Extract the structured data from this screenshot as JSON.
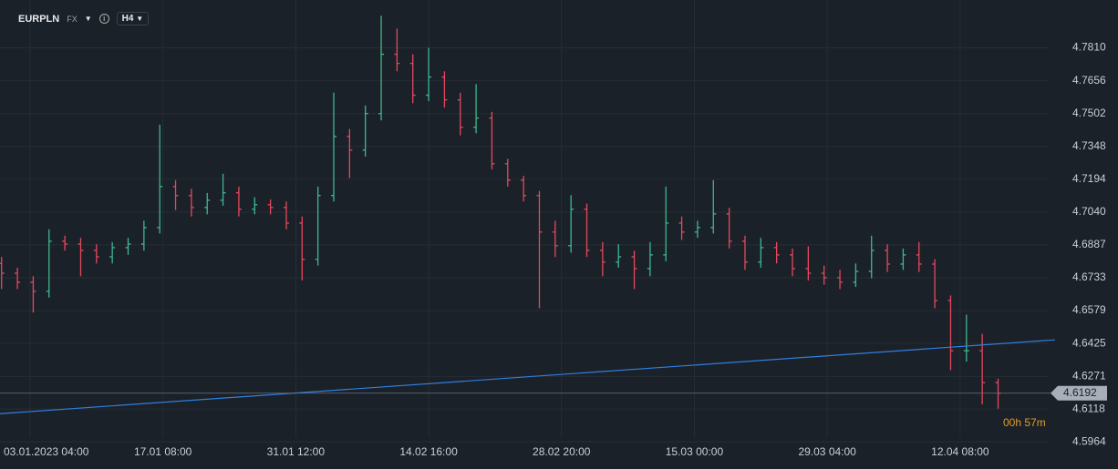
{
  "header": {
    "symbol": "EURPLN",
    "market": "FX",
    "interval": "H4"
  },
  "chart_data": {
    "type": "ohlc",
    "x": [
      -18,
      -8,
      2,
      12,
      22,
      32,
      42,
      52,
      62,
      72,
      82,
      92,
      102,
      112,
      122,
      132,
      142,
      152,
      162,
      172,
      182,
      192,
      202,
      212,
      222,
      232,
      242,
      252,
      262,
      272,
      282,
      292,
      302,
      312,
      322,
      332,
      342,
      352,
      362,
      372,
      382,
      392,
      402,
      412,
      422,
      432,
      442,
      452,
      462,
      472,
      482,
      492,
      502,
      512,
      522,
      532,
      542,
      552,
      562,
      572,
      582,
      592,
      602,
      612
    ],
    "open": [
      4.68,
      4.6754,
      4.6712,
      4.6669,
      4.6904,
      4.6891,
      4.6861,
      4.6831,
      4.6874,
      4.6891,
      4.6968,
      4.716,
      4.7118,
      4.7062,
      4.7096,
      4.7131,
      4.7054,
      4.7075,
      4.7062,
      4.6989,
      4.6819,
      4.7118,
      4.7395,
      4.7331,
      4.7502,
      4.778,
      4.7737,
      4.7588,
      4.7673,
      4.7566,
      4.7438,
      4.7481,
      4.7267,
      4.719,
      4.7118,
      4.6947,
      4.6883,
      4.7054,
      4.6861,
      4.6806,
      4.6831,
      4.6776,
      4.684,
      4.6989,
      4.6947,
      4.6968,
      4.7032,
      4.6904,
      4.6806,
      4.6874,
      4.684,
      4.6776,
      4.6754,
      4.6733,
      4.6712,
      4.6763,
      4.6861,
      4.6797,
      4.684,
      4.6797,
      4.6626,
      4.6391,
      4.6391,
      4.6242
    ],
    "high": [
      4.683,
      4.678,
      4.674,
      4.696,
      4.693,
      4.692,
      4.689,
      4.69,
      4.692,
      4.7,
      4.745,
      4.719,
      4.715,
      4.713,
      4.722,
      4.716,
      4.711,
      4.71,
      4.709,
      4.702,
      4.716,
      4.76,
      4.743,
      4.754,
      4.796,
      4.79,
      4.778,
      4.781,
      4.77,
      4.76,
      4.764,
      4.751,
      4.729,
      4.721,
      4.714,
      4.7,
      4.712,
      4.708,
      4.69,
      4.689,
      4.686,
      4.69,
      4.716,
      4.702,
      4.7,
      4.719,
      4.706,
      4.693,
      4.692,
      4.69,
      4.687,
      4.688,
      4.679,
      4.677,
      4.68,
      4.693,
      4.689,
      4.687,
      4.69,
      4.682,
      4.665,
      4.656,
      4.647,
      4.626
    ],
    "low": [
      4.668,
      4.668,
      4.657,
      4.664,
      4.686,
      4.674,
      4.68,
      4.68,
      4.684,
      4.686,
      4.694,
      4.705,
      4.702,
      4.703,
      4.707,
      4.702,
      4.703,
      4.703,
      4.696,
      4.672,
      4.679,
      4.709,
      4.72,
      4.73,
      4.747,
      4.77,
      4.755,
      4.756,
      4.753,
      4.74,
      4.741,
      4.724,
      4.716,
      4.709,
      4.659,
      4.683,
      4.685,
      4.683,
      4.674,
      4.678,
      4.668,
      4.674,
      4.681,
      4.691,
      4.692,
      4.694,
      4.687,
      4.677,
      4.678,
      4.68,
      4.674,
      4.672,
      4.67,
      4.668,
      4.669,
      4.673,
      4.676,
      4.677,
      4.676,
      4.659,
      4.63,
      4.634,
      4.614,
      4.612
    ],
    "close": [
      4.6754,
      4.6712,
      4.6669,
      4.6904,
      4.6891,
      4.6861,
      4.6831,
      4.6874,
      4.6891,
      4.6968,
      4.716,
      4.7118,
      4.7062,
      4.7096,
      4.7131,
      4.7054,
      4.7075,
      4.7062,
      4.6989,
      4.6819,
      4.7118,
      4.7395,
      4.7331,
      4.7502,
      4.778,
      4.7737,
      4.7588,
      4.7673,
      4.7566,
      4.7438,
      4.7481,
      4.7267,
      4.719,
      4.7118,
      4.6947,
      4.6883,
      4.7054,
      4.6861,
      4.6806,
      4.6831,
      4.6776,
      4.684,
      4.6989,
      4.6947,
      4.6968,
      4.7032,
      4.6904,
      4.6806,
      4.6874,
      4.684,
      4.6776,
      4.6754,
      4.6733,
      4.6712,
      4.6763,
      4.6861,
      4.6797,
      4.684,
      4.6797,
      4.6626,
      4.6391,
      4.6391,
      4.6242,
      4.6192
    ],
    "up_color": "#3db88f",
    "down_color": "#e5485d",
    "xlim": [
      -19,
      644
    ],
    "ylim": [
      4.5837,
      4.8034
    ],
    "xticks": [
      {
        "value": 0,
        "label": "03.01.2023  04:00"
      },
      {
        "value": 84,
        "label": "17.01  08:00"
      },
      {
        "value": 168,
        "label": "31.01  12:00"
      },
      {
        "value": 252,
        "label": "14.02  16:00"
      },
      {
        "value": 336,
        "label": "28.02  20:00"
      },
      {
        "value": 420,
        "label": "15.03  00:00"
      },
      {
        "value": 504,
        "label": "29.03  04:00"
      },
      {
        "value": 588,
        "label": "12.04  08:00"
      }
    ],
    "yticks": [
      {
        "value": 4.781,
        "label": "4.7810"
      },
      4.7656,
      4.7502,
      4.7348,
      4.7194,
      {
        "value": 4.704,
        "label": "4.7040"
      },
      4.6887,
      4.6733,
      4.6579,
      4.6425,
      4.6271,
      4.6118,
      4.5964
    ],
    "grid": true,
    "trendline": {
      "x": [
        -19,
        648
      ],
      "y": [
        4.6096,
        4.6442
      ],
      "color": "#2f7fe0"
    },
    "last_price": {
      "value": 4.6192,
      "label": "4.6192"
    },
    "countdown": "00h 57m"
  }
}
